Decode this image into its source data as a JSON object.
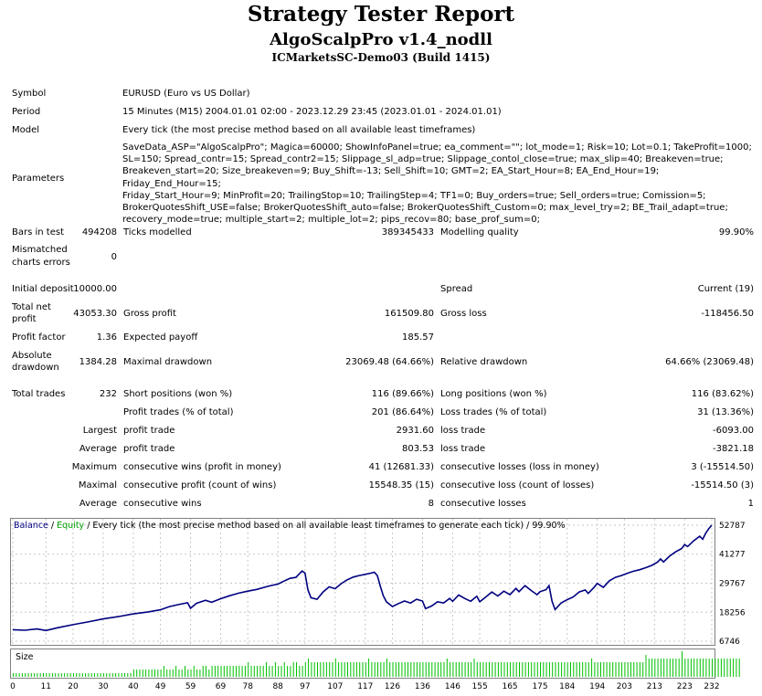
{
  "header": {
    "title": "Strategy Tester Report",
    "ea_name": "AlgoScalpPro v1.4_nodll",
    "account": "ICMarketsSC-Demo03 (Build 1415)"
  },
  "info": {
    "symbol_label": "Symbol",
    "symbol_value": "EURUSD (Euro vs US Dollar)",
    "period_label": "Period",
    "period_value": "15 Minutes (M15) 2004.01.01 02:00 - 2023.12.29 23:45 (2023.01.01 - 2024.01.01)",
    "model_label": "Model",
    "model_value": "Every tick (the most precise method based on all available least timeframes)",
    "parameters_label": "Parameters",
    "parameters_lines": [
      "SaveData_ASP=\"AlgoScalpPro\"; Magica=60000; ShowInfoPanel=true; ea_comment=\"\"; lot_mode=1; Risk=10; Lot=0.1; TakeProfit=1000;",
      "SL=150; Spread_contr=15; Spread_contr2=15; Slippage_sl_adp=true; Slippage_contol_close=true; max_slip=40; Breakeven=true;",
      "Breakeven_start=20; Size_breakeven=9; Buy_Shift=-13; Sell_Shift=10; GMT=2; EA_Start_Hour=8; EA_End_Hour=19; Friday_End_Hour=15;",
      "Friday_Start_Hour=9; MinProfit=20; TrailingStop=10; TrailingStep=4; TF1=0; Buy_orders=true; Sell_orders=true; Comission=5;",
      "BrokerQuotesShift_USE=false; BrokerQuotesShift_auto=false; BrokerQuotesShift_Custom=0; max_level_try=2; BE_Trail_adapt=true;",
      "recovery_mode=true; multiple_start=2; multiple_lot=2; pips_recov=80; base_prof_sum=0;"
    ]
  },
  "stats": {
    "bars_label": "Bars in test",
    "bars_value": "494208",
    "ticks_label": "Ticks modelled",
    "ticks_value": "389345433",
    "quality_label": "Modelling quality",
    "quality_value": "99.90%",
    "mismatch_label_1": "Mismatched",
    "mismatch_label_2": "charts errors",
    "mismatch_value": "0",
    "deposit_label": "Initial deposit",
    "deposit_value": "10000.00",
    "spread_label": "Spread",
    "spread_value": "Current (19)",
    "net_label_1": "Total net",
    "net_label_2": "profit",
    "net_value": "43053.30",
    "gross_profit_label": "Gross profit",
    "gross_profit_value": "161509.80",
    "gross_loss_label": "Gross loss",
    "gross_loss_value": "-118456.50",
    "pf_label": "Profit factor",
    "pf_value": "1.36",
    "ep_label": "Expected payoff",
    "ep_value": "185.57",
    "abs_dd_label_1": "Absolute",
    "abs_dd_label_2": "drawdown",
    "abs_dd_value": "1384.28",
    "max_dd_label": "Maximal drawdown",
    "max_dd_value": "23069.48 (64.66%)",
    "rel_dd_label": "Relative drawdown",
    "rel_dd_value": "64.66% (23069.48)",
    "total_trades_label": "Total trades",
    "total_trades_value": "232",
    "short_label": "Short positions (won %)",
    "short_value": "116 (89.66%)",
    "long_label": "Long positions (won %)",
    "long_value": "116 (83.62%)",
    "profit_trades_label": "Profit trades (% of total)",
    "profit_trades_value": "201 (86.64%)",
    "loss_trades_label": "Loss trades (% of total)",
    "loss_trades_value": "31 (13.36%)",
    "largest_label": "Largest",
    "largest_profit_label": "profit trade",
    "largest_profit_value": "2931.60",
    "largest_loss_label": "loss trade",
    "largest_loss_value": "-6093.00",
    "average_label": "Average",
    "average_profit_label": "profit trade",
    "average_profit_value": "803.53",
    "average_loss_label": "loss trade",
    "average_loss_value": "-3821.18",
    "maximum_label": "Maximum",
    "max_wins_label": "consecutive wins (profit in money)",
    "max_wins_value": "41 (12681.33)",
    "max_losses_label": "consecutive losses (loss in money)",
    "max_losses_value": "3 (-15514.50)",
    "maximal_label": "Maximal",
    "maximal_profit_label": "consecutive profit (count of wins)",
    "maximal_profit_value": "15548.35 (15)",
    "maximal_loss_label": "consecutive loss (count of losses)",
    "maximal_loss_value": "-15514.50 (3)",
    "average2_label": "Average",
    "avg_wins_label": "consecutive wins",
    "avg_wins_value": "8",
    "avg_losses_label": "consecutive losses",
    "avg_losses_value": "1"
  },
  "chart_legend": {
    "balance": "Balance",
    "sep1": " / ",
    "equity": "Equity",
    "rest": " / Every tick (the most precise method based on all available least timeframes to generate each tick) / 99.90%"
  },
  "colors": {
    "balance": "#000080",
    "equity": "#00a000",
    "size_bars": "#00c000",
    "grid": "#c8c8c8",
    "border": "#808080"
  },
  "chart_data": {
    "type": "line",
    "y_ticks": [
      "52787",
      "41277",
      "29767",
      "18256",
      "6746"
    ],
    "x_ticks": [
      "0",
      "11",
      "20",
      "30",
      "40",
      "49",
      "59",
      "69",
      "78",
      "88",
      "97",
      "107",
      "117",
      "126",
      "136",
      "146",
      "155",
      "165",
      "175",
      "184",
      "194",
      "203",
      "213",
      "223",
      "232"
    ],
    "x_range": [
      0,
      232
    ],
    "y_range": [
      6746,
      52787
    ],
    "series": [
      {
        "name": "Balance",
        "points": [
          [
            0,
            11300
          ],
          [
            4,
            11100
          ],
          [
            8,
            11600
          ],
          [
            11,
            11000
          ],
          [
            15,
            12100
          ],
          [
            20,
            13300
          ],
          [
            25,
            14400
          ],
          [
            30,
            15600
          ],
          [
            35,
            16500
          ],
          [
            40,
            17600
          ],
          [
            45,
            18400
          ],
          [
            49,
            19200
          ],
          [
            52,
            20500
          ],
          [
            55,
            21300
          ],
          [
            58,
            22000
          ],
          [
            59,
            19800
          ],
          [
            61,
            21800
          ],
          [
            64,
            23000
          ],
          [
            66,
            22200
          ],
          [
            69,
            23600
          ],
          [
            72,
            24800
          ],
          [
            75,
            25800
          ],
          [
            78,
            26600
          ],
          [
            81,
            27300
          ],
          [
            84,
            28300
          ],
          [
            86,
            28900
          ],
          [
            88,
            29400
          ],
          [
            90,
            30600
          ],
          [
            92,
            31700
          ],
          [
            94,
            32100
          ],
          [
            95,
            33400
          ],
          [
            96,
            34600
          ],
          [
            97,
            33800
          ],
          [
            98,
            27000
          ],
          [
            99,
            24000
          ],
          [
            101,
            23400
          ],
          [
            103,
            26300
          ],
          [
            105,
            28300
          ],
          [
            107,
            27600
          ],
          [
            109,
            29600
          ],
          [
            111,
            31100
          ],
          [
            113,
            32200
          ],
          [
            115,
            32800
          ],
          [
            117,
            33300
          ],
          [
            119,
            33800
          ],
          [
            120,
            34100
          ],
          [
            121,
            32800
          ],
          [
            122,
            28500
          ],
          [
            123,
            24700
          ],
          [
            124,
            22400
          ],
          [
            126,
            20500
          ],
          [
            128,
            21700
          ],
          [
            130,
            22700
          ],
          [
            132,
            21900
          ],
          [
            134,
            23400
          ],
          [
            136,
            22700
          ],
          [
            137,
            19700
          ],
          [
            139,
            20700
          ],
          [
            141,
            22400
          ],
          [
            143,
            21900
          ],
          [
            145,
            23700
          ],
          [
            146,
            22600
          ],
          [
            148,
            25100
          ],
          [
            150,
            23700
          ],
          [
            152,
            22600
          ],
          [
            154,
            24600
          ],
          [
            155,
            22400
          ],
          [
            157,
            24300
          ],
          [
            159,
            26300
          ],
          [
            161,
            24700
          ],
          [
            163,
            26600
          ],
          [
            165,
            25200
          ],
          [
            167,
            27700
          ],
          [
            168,
            26400
          ],
          [
            170,
            28800
          ],
          [
            172,
            26900
          ],
          [
            174,
            25200
          ],
          [
            175,
            26400
          ],
          [
            177,
            27200
          ],
          [
            178,
            28800
          ],
          [
            179,
            22600
          ],
          [
            180,
            19300
          ],
          [
            182,
            21900
          ],
          [
            184,
            23200
          ],
          [
            186,
            24300
          ],
          [
            188,
            26300
          ],
          [
            190,
            27100
          ],
          [
            191,
            25700
          ],
          [
            193,
            28200
          ],
          [
            194,
            29700
          ],
          [
            196,
            28100
          ],
          [
            198,
            30700
          ],
          [
            200,
            32100
          ],
          [
            202,
            32800
          ],
          [
            204,
            33700
          ],
          [
            206,
            34500
          ],
          [
            208,
            35100
          ],
          [
            210,
            35900
          ],
          [
            212,
            36800
          ],
          [
            214,
            38100
          ],
          [
            215,
            39400
          ],
          [
            216,
            38200
          ],
          [
            218,
            40500
          ],
          [
            220,
            42200
          ],
          [
            222,
            43500
          ],
          [
            223,
            45100
          ],
          [
            224,
            44300
          ],
          [
            226,
            46600
          ],
          [
            228,
            48400
          ],
          [
            229,
            47200
          ],
          [
            230,
            49600
          ],
          [
            231,
            51400
          ],
          [
            232,
            52800
          ]
        ]
      }
    ],
    "size_values": [
      1,
      1,
      1,
      1,
      1,
      1,
      1,
      1,
      1,
      1,
      1,
      1,
      1,
      1,
      1,
      1,
      1,
      1,
      1,
      1,
      1,
      1,
      1,
      1,
      1,
      1,
      1,
      1,
      1,
      1,
      1,
      1,
      1,
      1,
      1,
      1,
      1,
      1,
      1,
      1,
      2,
      2,
      2,
      2,
      2,
      2,
      2,
      2,
      2,
      2,
      3,
      2,
      2,
      2,
      3,
      2,
      2,
      3,
      2,
      2,
      3,
      2,
      2,
      3,
      3,
      2,
      3,
      3,
      3,
      3,
      3,
      3,
      3,
      3,
      3,
      3,
      3,
      3,
      4,
      3,
      3,
      3,
      3,
      3,
      4,
      3,
      3,
      4,
      3,
      3,
      4,
      3,
      3,
      4,
      4,
      3,
      3,
      4,
      5,
      4,
      4,
      4,
      4,
      4,
      4,
      4,
      4,
      5,
      4,
      4,
      4,
      4,
      4,
      4,
      4,
      4,
      4,
      4,
      5,
      4,
      4,
      4,
      4,
      4,
      5,
      4,
      4,
      4,
      4,
      4,
      4,
      4,
      4,
      4,
      4,
      4,
      4,
      4,
      4,
      4,
      4,
      4,
      4,
      4,
      5,
      4,
      4,
      4,
      4,
      4,
      4,
      4,
      4,
      5,
      4,
      4,
      4,
      4,
      4,
      4,
      4,
      4,
      4,
      4,
      4,
      4,
      4,
      4,
      4,
      4,
      4,
      4,
      4,
      4,
      4,
      4,
      4,
      4,
      4,
      4,
      4,
      4,
      4,
      4,
      4,
      4,
      4,
      4,
      4,
      4,
      4,
      4,
      5,
      4,
      4,
      4,
      4,
      4,
      4,
      4,
      4,
      4,
      4,
      4,
      4,
      4,
      4,
      4,
      4,
      4,
      6,
      5,
      5,
      5,
      5,
      5,
      5,
      5,
      5,
      5,
      5,
      5,
      7,
      5,
      5,
      5,
      5,
      5,
      5,
      5,
      5,
      5,
      5,
      5,
      5,
      5,
      5,
      5,
      5,
      5,
      5,
      5
    ]
  }
}
